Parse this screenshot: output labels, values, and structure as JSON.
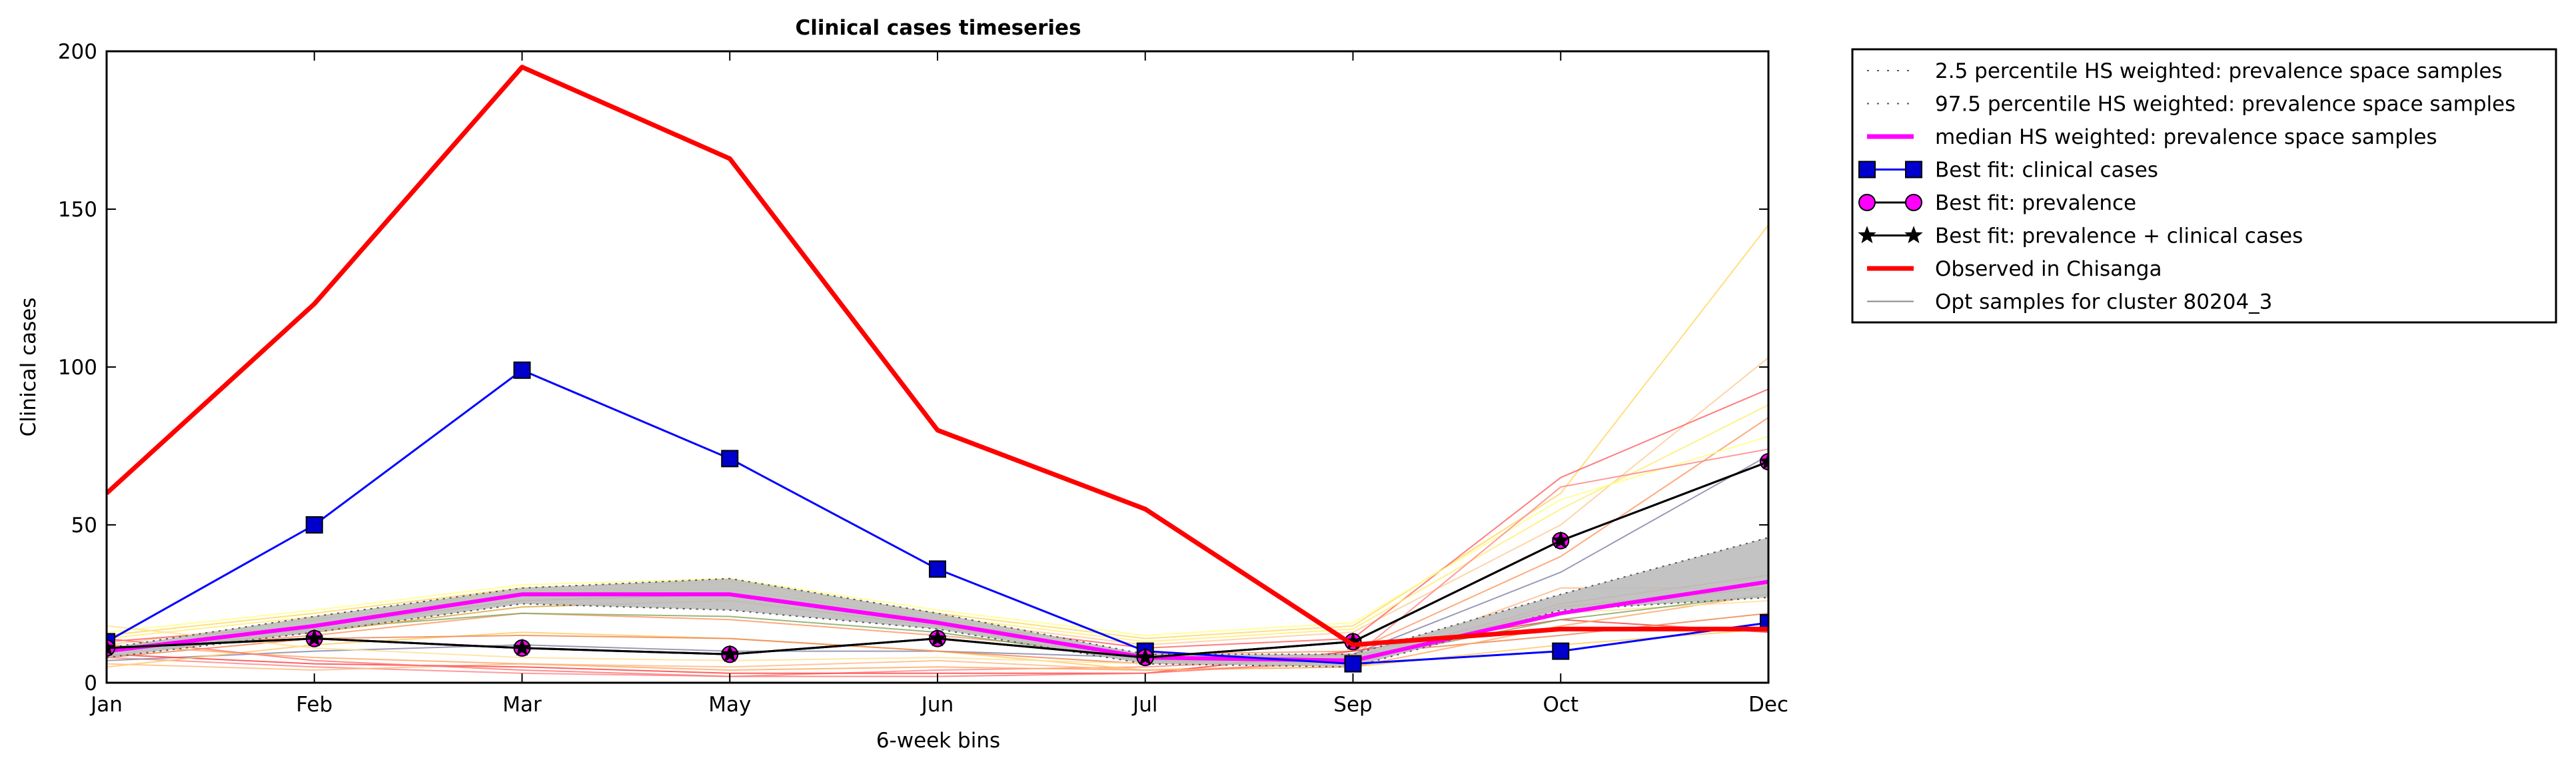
{
  "chart_data": {
    "type": "line",
    "title": "Clinical cases timeseries",
    "xlabel": "6-week bins",
    "ylabel": "Clinical cases",
    "categories": [
      "Jan",
      "Feb",
      "Mar",
      "May",
      "Jun",
      "Jul",
      "Sep",
      "Oct",
      "Dec"
    ],
    "ylim": [
      0,
      200
    ],
    "yticks": [
      0,
      50,
      100,
      150,
      200
    ],
    "grid": false,
    "legend_position": "outside-right",
    "band": {
      "lower_name": "2.5 percentile HS weighted: prevalence space samples",
      "upper_name": "97.5 percentile HS weighted: prevalence space samples",
      "lower": [
        8,
        16,
        25,
        23,
        17,
        6,
        5,
        23,
        27
      ],
      "upper": [
        11,
        21,
        30,
        33,
        22,
        9,
        9,
        28,
        46
      ],
      "fill_color": "#bdbdbd"
    },
    "series": [
      {
        "name": "median HS weighted: prevalence space samples",
        "color": "#ff00ff",
        "marker": "none",
        "values": [
          10,
          18,
          28,
          28,
          19,
          8,
          7,
          22,
          32
        ]
      },
      {
        "name": "Best fit: clinical cases",
        "color": "#0000ff",
        "marker": "square",
        "values": [
          13,
          50,
          99,
          71,
          36,
          10,
          6,
          10,
          19
        ]
      },
      {
        "name": "Best fit: prevalence",
        "color": "#000000",
        "marker": "circle",
        "marker_color": "#ff00ff",
        "values": [
          11,
          14,
          11,
          9,
          14,
          8,
          13,
          45,
          70
        ]
      },
      {
        "name": "Best fit: prevalence + clinical cases",
        "color": "#000000",
        "marker": "star",
        "values": [
          11,
          14,
          11,
          9,
          14,
          8,
          13,
          45,
          70
        ]
      },
      {
        "name": "Observed in Chisanga",
        "color": "#ff0000",
        "marker": "none",
        "values": [
          60,
          120,
          195,
          166,
          80,
          55,
          12,
          17,
          17
        ]
      }
    ],
    "samples_legend": {
      "name": "Opt samples for cluster 80204_3",
      "color": "#888888"
    },
    "samples": [
      {
        "color": "#ffd966",
        "values": [
          15,
          22,
          30,
          32,
          22,
          14,
          18,
          60,
          145
        ]
      },
      {
        "color": "#ffcc99",
        "values": [
          12,
          20,
          28,
          30,
          20,
          12,
          16,
          50,
          103
        ]
      },
      {
        "color": "#ff6666",
        "values": [
          13,
          18,
          26,
          28,
          19,
          11,
          14,
          65,
          93
        ]
      },
      {
        "color": "#ffee77",
        "values": [
          14,
          21,
          29,
          31,
          21,
          13,
          17,
          55,
          88
        ]
      },
      {
        "color": "#ff9966",
        "values": [
          10,
          15,
          22,
          20,
          15,
          9,
          10,
          40,
          84
        ]
      },
      {
        "color": "#ffff88",
        "values": [
          16,
          23,
          31,
          33,
          23,
          15,
          19,
          58,
          78
        ]
      },
      {
        "color": "#ff8888",
        "values": [
          8,
          5,
          3,
          2,
          4,
          5,
          8,
          62,
          74
        ]
      },
      {
        "color": "#8888aa",
        "values": [
          7,
          10,
          12,
          10,
          10,
          8,
          9,
          35,
          72
        ]
      },
      {
        "color": "#ffbb88",
        "values": [
          6,
          4,
          6,
          5,
          7,
          4,
          6,
          30,
          30
        ]
      },
      {
        "color": "#ff4444",
        "values": [
          9,
          6,
          5,
          3,
          3,
          3,
          10,
          20,
          16
        ]
      },
      {
        "color": "#ffcc66",
        "values": [
          5,
          12,
          16,
          14,
          10,
          4,
          5,
          12,
          17
        ]
      },
      {
        "color": "#ee8855",
        "values": [
          8,
          14,
          15,
          14,
          10,
          6,
          9,
          15,
          22
        ]
      },
      {
        "color": "#ffaa66",
        "values": [
          12,
          8,
          6,
          4,
          5,
          4,
          5,
          18,
          28
        ]
      },
      {
        "color": "#ff7777",
        "values": [
          14,
          7,
          4,
          2,
          2,
          3,
          7,
          25,
          34
        ]
      },
      {
        "color": "#ffe099",
        "values": [
          18,
          11,
          8,
          7,
          8,
          6,
          8,
          22,
          26
        ]
      },
      {
        "color": "#88aa66",
        "values": [
          11,
          17,
          22,
          21,
          16,
          7,
          7,
          20,
          28
        ]
      },
      {
        "color": "#ddaa44",
        "values": [
          10,
          16,
          24,
          26,
          18,
          8,
          6,
          24,
          30
        ]
      }
    ]
  }
}
